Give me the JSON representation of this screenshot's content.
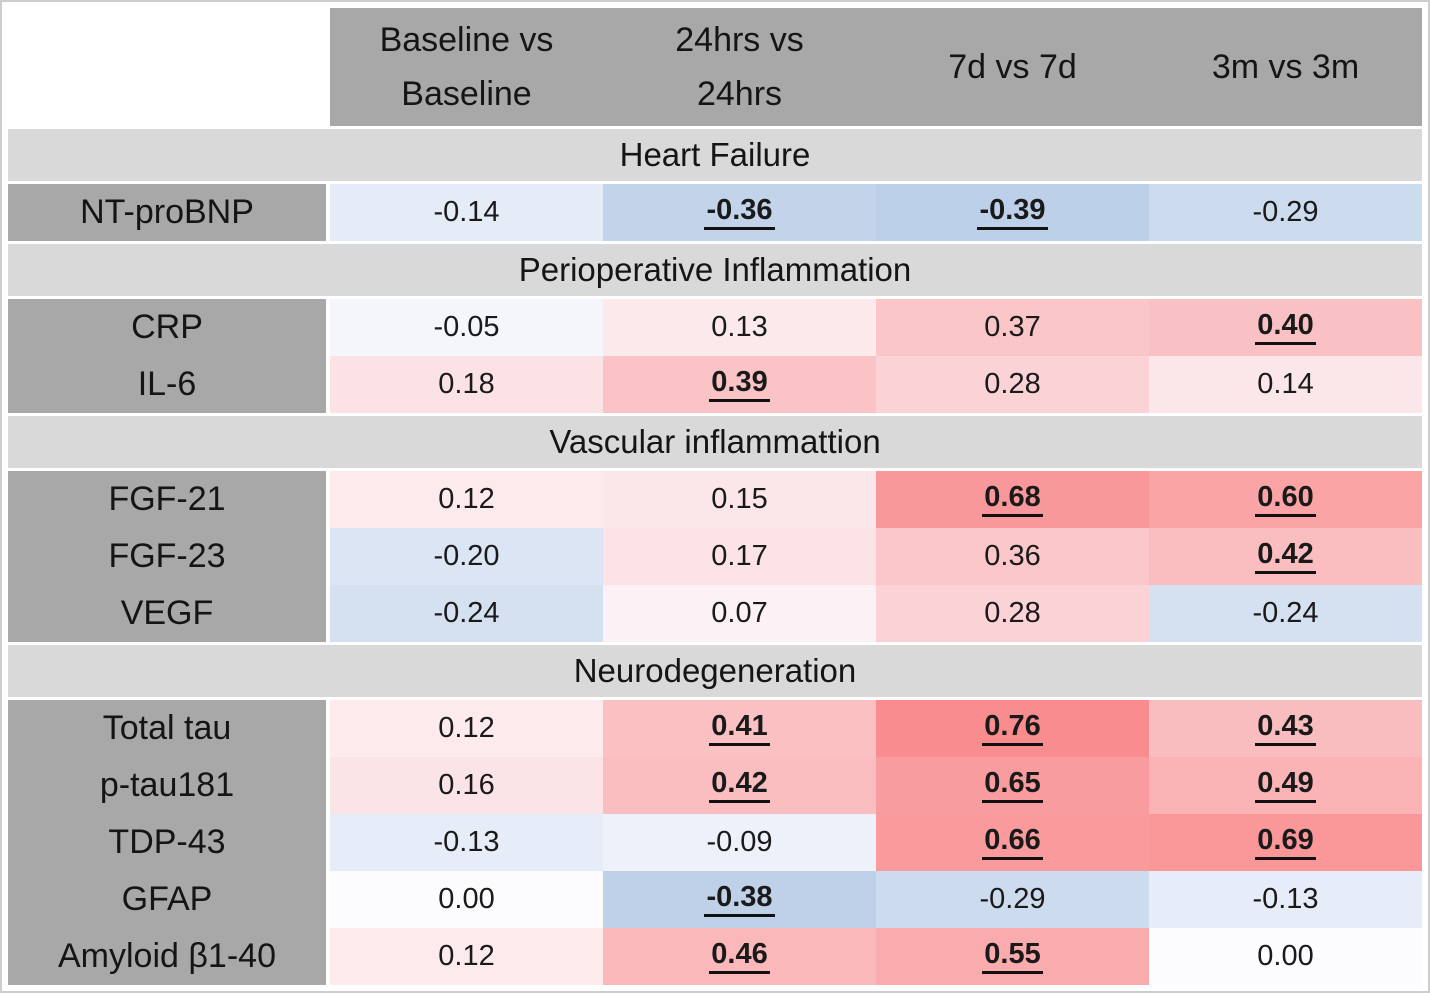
{
  "figure": {
    "kind": "correlation-heatmap-table",
    "significance_style": "significant correlations shown bold and underlined"
  },
  "colors": {
    "header_gray": "#a8a8a8",
    "label_gray": "#a8a8a8",
    "section_band_gray": "#d9d9d9",
    "text": "#111111",
    "page_background": "#ffffff"
  },
  "chart_data": {
    "type": "heatmap",
    "columns": [
      "Baseline vs\nBaseline",
      "24hrs vs\n24hrs",
      "7d vs 7d",
      "3m vs 3m"
    ],
    "colorscale": {
      "min": -1,
      "max": 1,
      "negative_color": "#5A8AC6",
      "mid_color": "#FCFCFF",
      "positive_color": "#F8696B"
    },
    "sections": [
      {
        "title": "Heart Failure",
        "rows": [
          {
            "label": "NT-proBNP",
            "values": [
              -0.14,
              -0.36,
              -0.39,
              -0.29
            ],
            "sig": [
              false,
              true,
              true,
              false
            ]
          }
        ]
      },
      {
        "title": "Perioperative Inflammation",
        "rows": [
          {
            "label": "CRP",
            "values": [
              -0.05,
              0.13,
              0.37,
              0.4
            ],
            "sig": [
              false,
              false,
              false,
              true
            ]
          },
          {
            "label": "IL-6",
            "values": [
              0.18,
              0.39,
              0.28,
              0.14
            ],
            "sig": [
              false,
              true,
              false,
              false
            ]
          }
        ]
      },
      {
        "title": "Vascular inflammattion",
        "rows": [
          {
            "label": "FGF-21",
            "values": [
              0.12,
              0.15,
              0.68,
              0.6
            ],
            "sig": [
              false,
              false,
              true,
              true
            ]
          },
          {
            "label": "FGF-23",
            "values": [
              -0.2,
              0.17,
              0.36,
              0.42
            ],
            "sig": [
              false,
              false,
              false,
              true
            ]
          },
          {
            "label": "VEGF",
            "values": [
              -0.24,
              0.07,
              0.28,
              -0.24
            ],
            "sig": [
              false,
              false,
              false,
              false
            ]
          }
        ]
      },
      {
        "title": "Neurodegeneration",
        "rows": [
          {
            "label": "Total tau",
            "values": [
              0.12,
              0.41,
              0.76,
              0.43
            ],
            "sig": [
              false,
              true,
              true,
              true
            ]
          },
          {
            "label": "p-tau181",
            "values": [
              0.16,
              0.42,
              0.65,
              0.49
            ],
            "sig": [
              false,
              true,
              true,
              true
            ]
          },
          {
            "label": "TDP-43",
            "values": [
              -0.13,
              -0.09,
              0.66,
              0.69
            ],
            "sig": [
              false,
              false,
              true,
              true
            ]
          },
          {
            "label": "GFAP",
            "values": [
              0.0,
              -0.38,
              -0.29,
              -0.13
            ],
            "sig": [
              false,
              true,
              false,
              false
            ]
          },
          {
            "label": "Amyloid β1-40",
            "values": [
              0.12,
              0.46,
              0.55,
              0.0
            ],
            "sig": [
              false,
              true,
              true,
              false
            ]
          }
        ]
      }
    ]
  }
}
